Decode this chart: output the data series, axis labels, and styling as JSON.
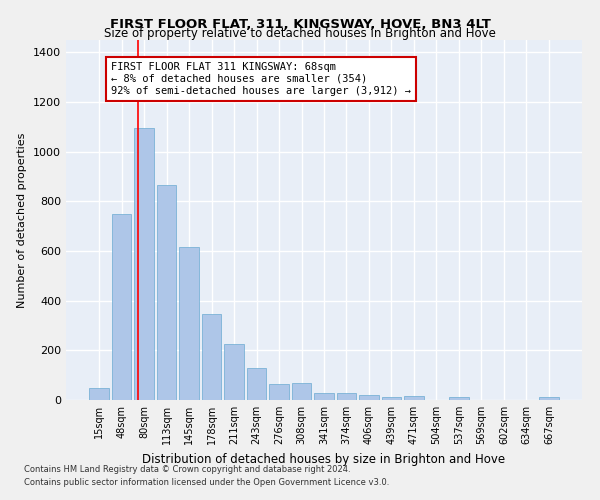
{
  "title": "FIRST FLOOR FLAT, 311, KINGSWAY, HOVE, BN3 4LT",
  "subtitle": "Size of property relative to detached houses in Brighton and Hove",
  "xlabel": "Distribution of detached houses by size in Brighton and Hove",
  "ylabel": "Number of detached properties",
  "bar_color": "#aec6e8",
  "bar_edge_color": "#6aabd2",
  "background_color": "#e8eef7",
  "grid_color": "#ffffff",
  "categories": [
    "15sqm",
    "48sqm",
    "80sqm",
    "113sqm",
    "145sqm",
    "178sqm",
    "211sqm",
    "243sqm",
    "276sqm",
    "308sqm",
    "341sqm",
    "374sqm",
    "406sqm",
    "439sqm",
    "471sqm",
    "504sqm",
    "537sqm",
    "569sqm",
    "602sqm",
    "634sqm",
    "667sqm"
  ],
  "values": [
    48,
    750,
    1095,
    865,
    615,
    345,
    225,
    130,
    65,
    70,
    30,
    30,
    20,
    13,
    18,
    0,
    12,
    0,
    0,
    0,
    12
  ],
  "property_line_x": 1.72,
  "annotation_text": "FIRST FLOOR FLAT 311 KINGSWAY: 68sqm\n← 8% of detached houses are smaller (354)\n92% of semi-detached houses are larger (3,912) →",
  "annotation_box_color": "#ffffff",
  "annotation_box_edge": "#cc0000",
  "ylim": [
    0,
    1450
  ],
  "yticks": [
    0,
    200,
    400,
    600,
    800,
    1000,
    1200,
    1400
  ],
  "footer1": "Contains HM Land Registry data © Crown copyright and database right 2024.",
  "footer2": "Contains public sector information licensed under the Open Government Licence v3.0."
}
